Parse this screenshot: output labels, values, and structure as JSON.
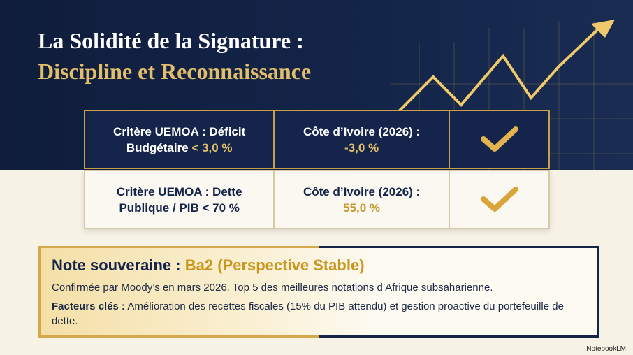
{
  "header": {
    "title_line1": "La Solidité de la Signature :",
    "title_line2": "Discipline et Reconnaissance"
  },
  "table": {
    "rows": [
      [
        {
          "text": "Critère UEMOA : Déficit Budgétaire",
          "highlight": "< 3,0 %"
        },
        {
          "text": "Côte d’Ivoire (2026) :",
          "highlight": "-3,0 %"
        }
      ],
      [
        {
          "text": "Critère UEMOA : Dette Publique / PIB < 70 %"
        },
        {
          "text": "Côte d’Ivoire (2026) :",
          "highlight": "55,0 %"
        }
      ]
    ]
  },
  "rating": {
    "label": "Note souveraine :",
    "value": "Ba2 (Perspective Stable)",
    "confirmation": "Confirmée par Moody’s en mars 2026. Top 5 des meilleures notations d’Afrique subsaharienne.",
    "factors_label": "Facteurs clés :",
    "factors_text": "Amélioration des recettes fiscales (15% du PIB attendu) et gestion proactive du portefeuille de dette."
  },
  "footer": {
    "brand": "NotebookLM"
  }
}
